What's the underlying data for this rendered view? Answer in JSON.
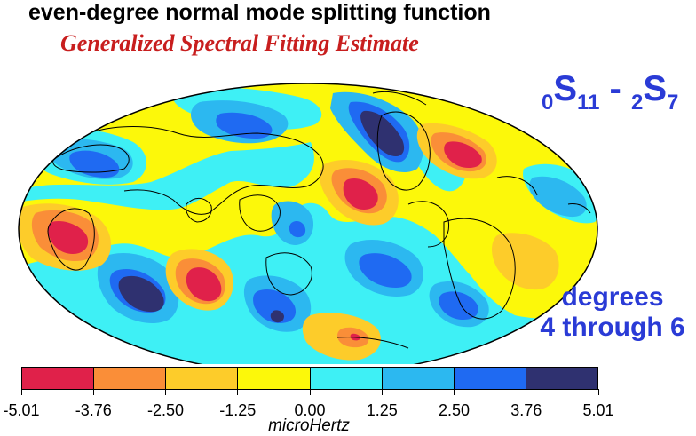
{
  "header": {
    "title": "even-degree normal mode splitting function",
    "subtitle": "Generalized Spectral Fitting Estimate"
  },
  "mode_label": {
    "mode1_n": "0",
    "mode1_type": "S",
    "mode1_l": "11",
    "separator": " - ",
    "mode2_n": "2",
    "mode2_type": "S",
    "mode2_l": "7"
  },
  "degrees_label": {
    "line1": "degrees",
    "line2": "4 through 6"
  },
  "colorbar": {
    "colors": [
      "#e0214a",
      "#fa8e38",
      "#fdcc2a",
      "#fcf80a",
      "#3ef0f5",
      "#2cb8f0",
      "#1f6af2",
      "#2f3170"
    ],
    "tick_labels": [
      "-5.01",
      "-3.76",
      "-2.50",
      "-1.25",
      "0.00",
      "1.25",
      "2.50",
      "3.76",
      "5.01"
    ],
    "unit_label": "microHertz"
  },
  "map": {
    "projection": "Hammer-Aitoff",
    "coastlines_color": "#000000"
  }
}
